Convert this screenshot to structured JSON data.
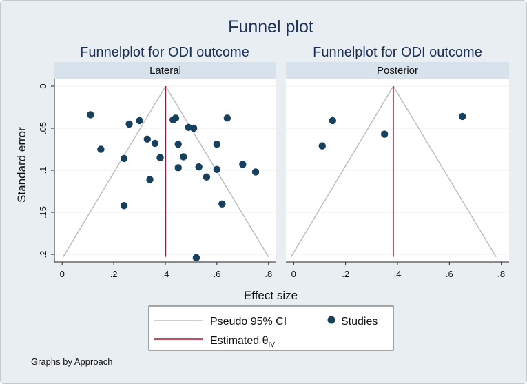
{
  "title": "Funnel plot",
  "note": "Graphs by Approach",
  "ylabel": "Standard error",
  "xlabel": "Effect size",
  "colors": {
    "background": "#e9eef3",
    "plot_bg": "#ffffff",
    "strip_bg": "#d8e2ec",
    "marker": "#16405e",
    "estimate_line": "#b0102b",
    "ci_line": "#bdbdbd",
    "grid": "#e8ecef"
  },
  "legend": {
    "ci_label": "Pseudo 95% CI",
    "studies_label": "Studies",
    "estimate_label": "Estimated θ",
    "estimate_subscript": "IV"
  },
  "chart_data": [
    {
      "type": "scatter",
      "title": "Funnelplot for ODI outcome",
      "panel": "Lateral",
      "xlabel": "Effect size",
      "ylabel": "Standard error",
      "x_ticks": [
        "0",
        ".2",
        ".4",
        ".6",
        ".8"
      ],
      "x_tick_values": [
        0,
        0.2,
        0.4,
        0.6,
        0.8
      ],
      "y_ticks": [
        "0",
        ".05",
        ".1",
        ".15",
        ".2"
      ],
      "y_tick_values": [
        0,
        0.05,
        0.1,
        0.15,
        0.2
      ],
      "xlim": [
        -0.03,
        0.83
      ],
      "ylim": [
        0.209,
        -0.009
      ],
      "estimate": 0.401,
      "ci_bottom_se": 0.203,
      "ci_left_x": 0.004,
      "ci_right_x": 0.8,
      "points": [
        {
          "x": 0.11,
          "y": 0.034
        },
        {
          "x": 0.15,
          "y": 0.075
        },
        {
          "x": 0.24,
          "y": 0.086
        },
        {
          "x": 0.24,
          "y": 0.142
        },
        {
          "x": 0.26,
          "y": 0.045
        },
        {
          "x": 0.3,
          "y": 0.041
        },
        {
          "x": 0.33,
          "y": 0.063
        },
        {
          "x": 0.34,
          "y": 0.111
        },
        {
          "x": 0.36,
          "y": 0.068
        },
        {
          "x": 0.38,
          "y": 0.085
        },
        {
          "x": 0.43,
          "y": 0.04
        },
        {
          "x": 0.44,
          "y": 0.038
        },
        {
          "x": 0.45,
          "y": 0.069
        },
        {
          "x": 0.45,
          "y": 0.097
        },
        {
          "x": 0.47,
          "y": 0.084
        },
        {
          "x": 0.49,
          "y": 0.049
        },
        {
          "x": 0.51,
          "y": 0.05
        },
        {
          "x": 0.52,
          "y": 0.204
        },
        {
          "x": 0.53,
          "y": 0.096
        },
        {
          "x": 0.56,
          "y": 0.108
        },
        {
          "x": 0.6,
          "y": 0.069
        },
        {
          "x": 0.6,
          "y": 0.099
        },
        {
          "x": 0.62,
          "y": 0.14
        },
        {
          "x": 0.64,
          "y": 0.038
        },
        {
          "x": 0.7,
          "y": 0.093
        },
        {
          "x": 0.75,
          "y": 0.102
        }
      ]
    },
    {
      "type": "scatter",
      "title": "Funnelplot for ODI outcome",
      "panel": "Posterior",
      "xlabel": "Effect size",
      "ylabel": "Standard error",
      "x_ticks": [
        "0",
        ".2",
        ".4",
        ".6",
        ".8"
      ],
      "x_tick_values": [
        0,
        0.2,
        0.4,
        0.6,
        0.8
      ],
      "xlim": [
        -0.03,
        0.83
      ],
      "ylim": [
        0.209,
        -0.009
      ],
      "estimate": 0.384,
      "ci_bottom_se": 0.203,
      "ci_left_x": -0.01,
      "ci_right_x": 0.78,
      "points": [
        {
          "x": 0.11,
          "y": 0.071
        },
        {
          "x": 0.15,
          "y": 0.041
        },
        {
          "x": 0.35,
          "y": 0.057
        },
        {
          "x": 0.65,
          "y": 0.036
        }
      ]
    }
  ]
}
